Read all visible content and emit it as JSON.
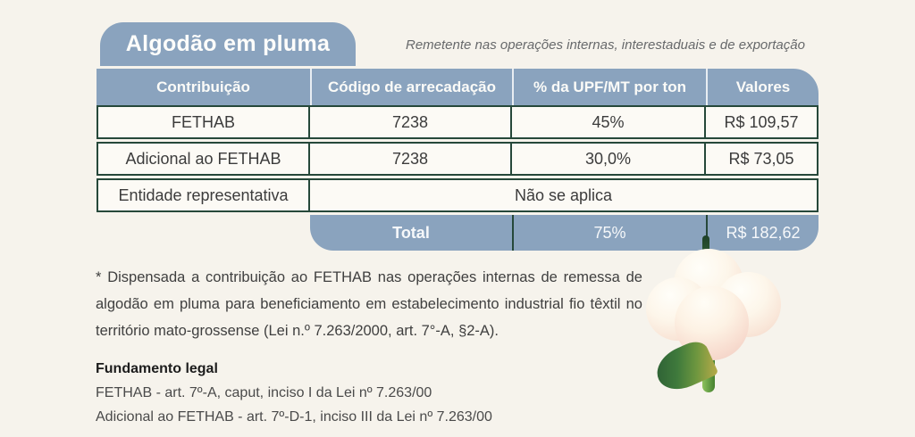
{
  "title": "Algodão em pluma",
  "subtitle": "Remetente nas operações internas, interestaduais e de exportação",
  "table": {
    "headers": [
      "Contribuição",
      "Código de arrecadação",
      "% da UPF/MT por ton",
      "Valores"
    ],
    "rows": [
      {
        "contribuicao": "FETHAB",
        "codigo": "7238",
        "percentual": "45%",
        "valor": "R$ 109,57"
      },
      {
        "contribuicao": "Adicional ao FETHAB",
        "codigo": "7238",
        "percentual": "30,0%",
        "valor": "R$ 73,05"
      },
      {
        "contribuicao": "Entidade representativa",
        "merged": "Não se aplica"
      }
    ],
    "total": {
      "label": "Total",
      "percentual": "75%",
      "valor": "R$ 182,62"
    }
  },
  "footnote": "* Dispensada a contribuição ao FETHAB nas operações internas de remessa de algodão em pluma para beneficiamento em estabelecimento industrial fio têxtil no território mato-grossense (Lei n.º 7.263/2000, art. 7°-A, §2-A).",
  "legal": {
    "heading": "Fundamento legal",
    "items": [
      "FETHAB - art. 7º-A, caput, inciso I da Lei nº 7.263/00",
      "Adicional ao FETHAB - art. 7º-D-1, inciso III da Lei nº 7.263/00"
    ]
  },
  "illustration": "cotton-flower-3d",
  "colors": {
    "accent_blue": "#8aa3be",
    "border_green": "#26483a",
    "background": "#f6f3ec",
    "cell_background": "#fcfaf5"
  }
}
